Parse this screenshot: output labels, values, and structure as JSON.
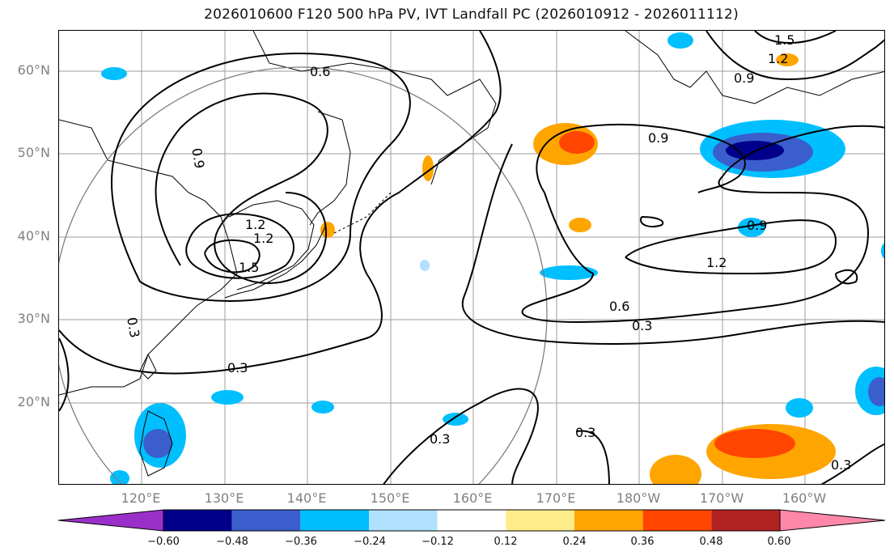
{
  "title": "2026010600 F120 500 hPa PV, IVT Landfall PC (2026010912 - 2026011112)",
  "lat_labels": [
    "60°N",
    "50°N",
    "40°N",
    "30°N",
    "20°N"
  ],
  "lon_labels": [
    "120°E",
    "130°E",
    "140°E",
    "150°E",
    "160°E",
    "170°E",
    "180°W",
    "170°W",
    "160°W"
  ],
  "contour_labels": [
    "0.6",
    "0.9",
    "1.2",
    "1.5",
    "0.9",
    "1.2",
    "0.9",
    "0.9",
    "1.2",
    "0.6",
    "0.3",
    "0.3",
    "0.3",
    "0.3",
    "0.3",
    "0.3",
    "1.2",
    "1.5"
  ],
  "colorbar": {
    "tick_labels": [
      "−0.60",
      "−0.48",
      "−0.36",
      "−0.24",
      "−0.12",
      "0.12",
      "0.24",
      "0.36",
      "0.48",
      "0.60"
    ],
    "colors": [
      "#9b30c9",
      "#00008b",
      "#3a5fcd",
      "#00bfff",
      "#b0e2ff",
      "#ffffff",
      "#ffec8b",
      "#ffa500",
      "#ff4500",
      "#b22222",
      "#ff88aa"
    ]
  }
}
